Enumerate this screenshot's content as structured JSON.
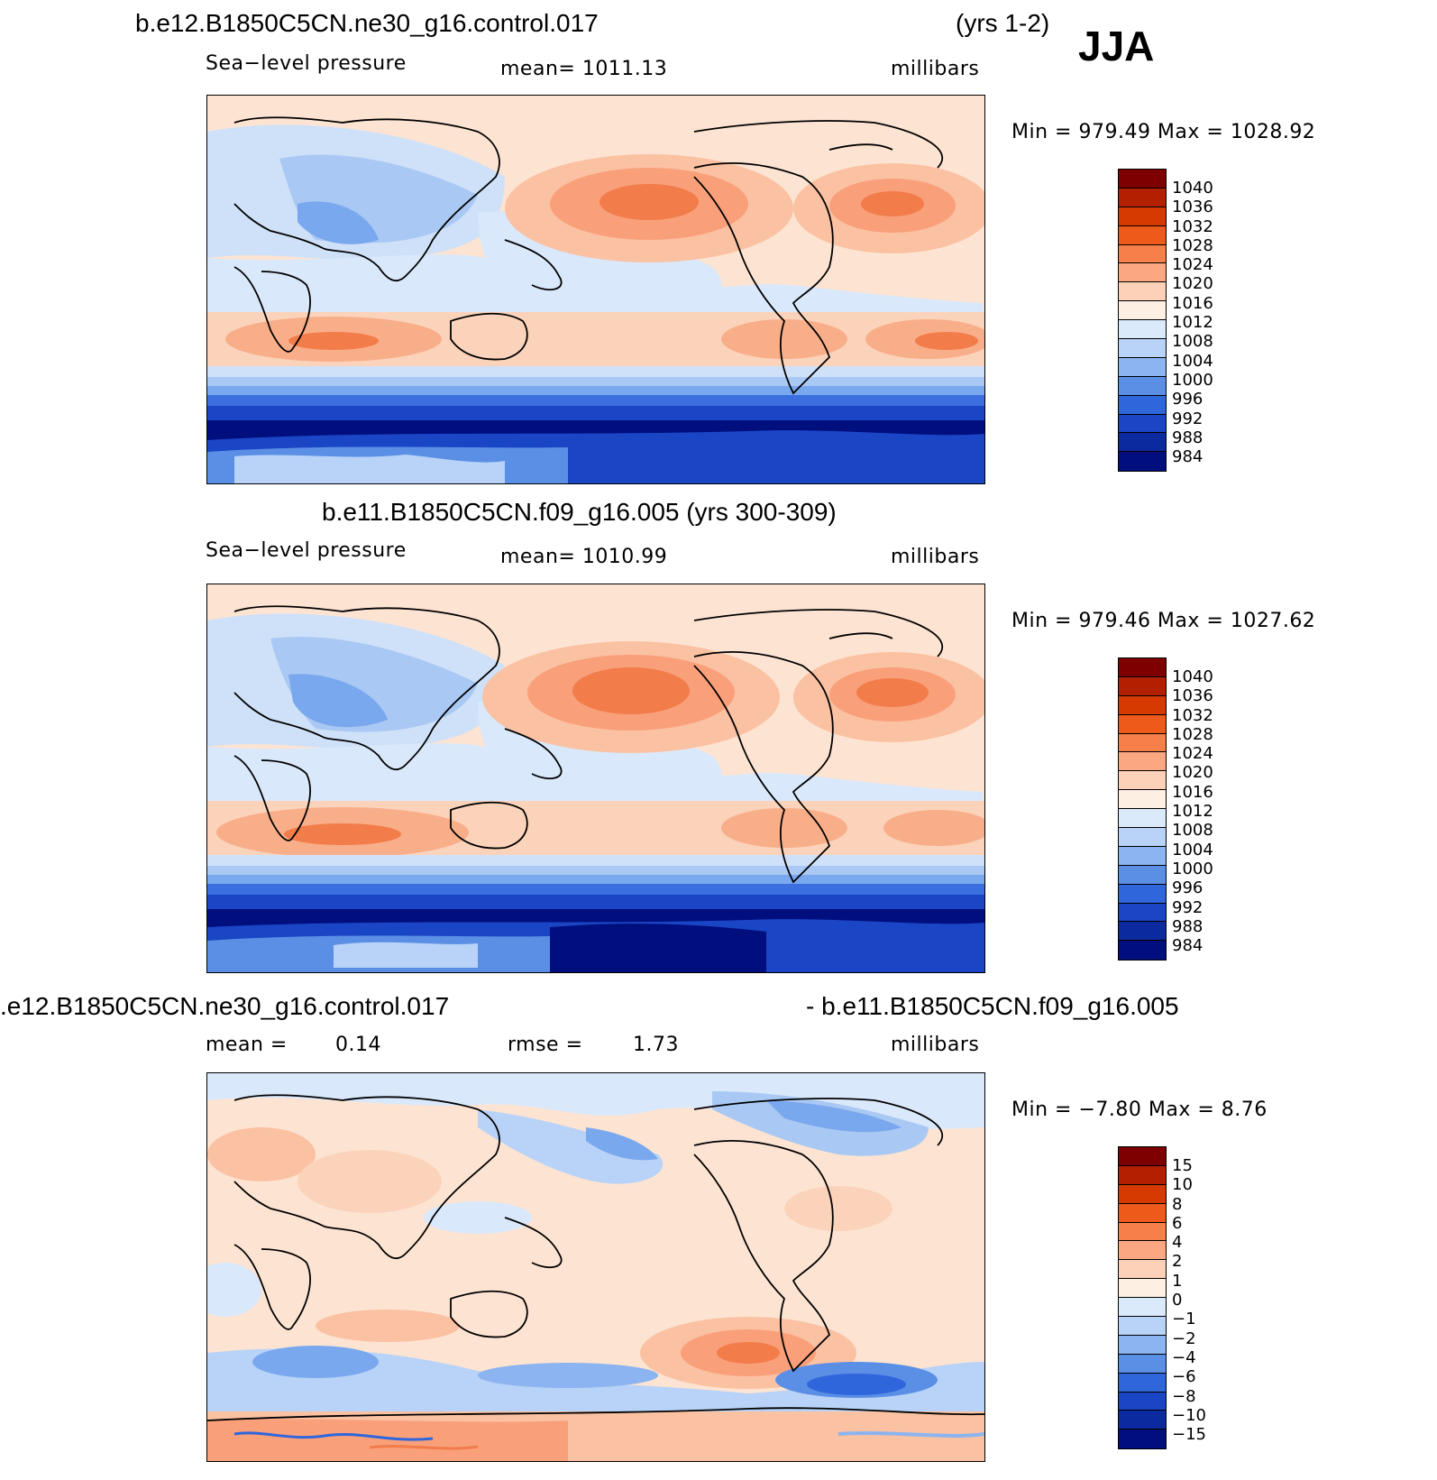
{
  "season": "JJA",
  "panel1": {
    "title": "b.e12.B1850C5CN.ne30_g16.control.017",
    "years": "(yrs 1-2)",
    "variable": "Sea−level pressure",
    "mean": "mean=  1011.13",
    "units": "millibars",
    "minmax": "Min  =  979.49  Max  =  1028.92"
  },
  "panel2": {
    "title": "b.e11.B1850C5CN.f09_g16.005 (yrs 300-309)",
    "variable": "Sea−level pressure",
    "mean": "mean=  1010.99",
    "units": "millibars",
    "minmax": "Min  =  979.46  Max  =  1027.62"
  },
  "panel3": {
    "title_left": ".e12.B1850C5CN.ne30_g16.control.017",
    "title_right": "- b.e11.B1850C5CN.f09_g16.005",
    "mean_label": "mean  =",
    "mean_value": "0.14",
    "rmse_label": "rmse  =",
    "rmse_value": "1.73",
    "units": "millibars",
    "minmax": "Min  =    −7.80  Max  =     8.76"
  },
  "colorbar_abs": {
    "labels": [
      "1040",
      "1036",
      "1032",
      "1028",
      "1024",
      "1020",
      "1016",
      "1012",
      "1008",
      "1004",
      "1000",
      "996",
      "992",
      "988",
      "984"
    ],
    "colors": [
      "#7f0000",
      "#b22000",
      "#d63a00",
      "#ee5a1a",
      "#f7804a",
      "#fba882",
      "#fdd0b8",
      "#fdf0e3",
      "#dbeafb",
      "#b8d3f7",
      "#8bb4f0",
      "#5b8fe6",
      "#2f66dc",
      "#1a45c4",
      "#0c2aa0",
      "#000e7e"
    ]
  },
  "colorbar_diff": {
    "labels": [
      "15",
      "10",
      "8",
      "6",
      "4",
      "2",
      "1",
      "0",
      "−1",
      "−2",
      "−4",
      "−6",
      "−8",
      "−10",
      "−15"
    ],
    "colors": [
      "#7f0000",
      "#b22000",
      "#d63a00",
      "#ee5a1a",
      "#f7804a",
      "#fba882",
      "#fdd0b8",
      "#fdf0e3",
      "#dbeafb",
      "#b8d3f7",
      "#8bb4f0",
      "#5b8fe6",
      "#2f66dc",
      "#1a45c4",
      "#0c2aa0",
      "#000e7e"
    ]
  }
}
